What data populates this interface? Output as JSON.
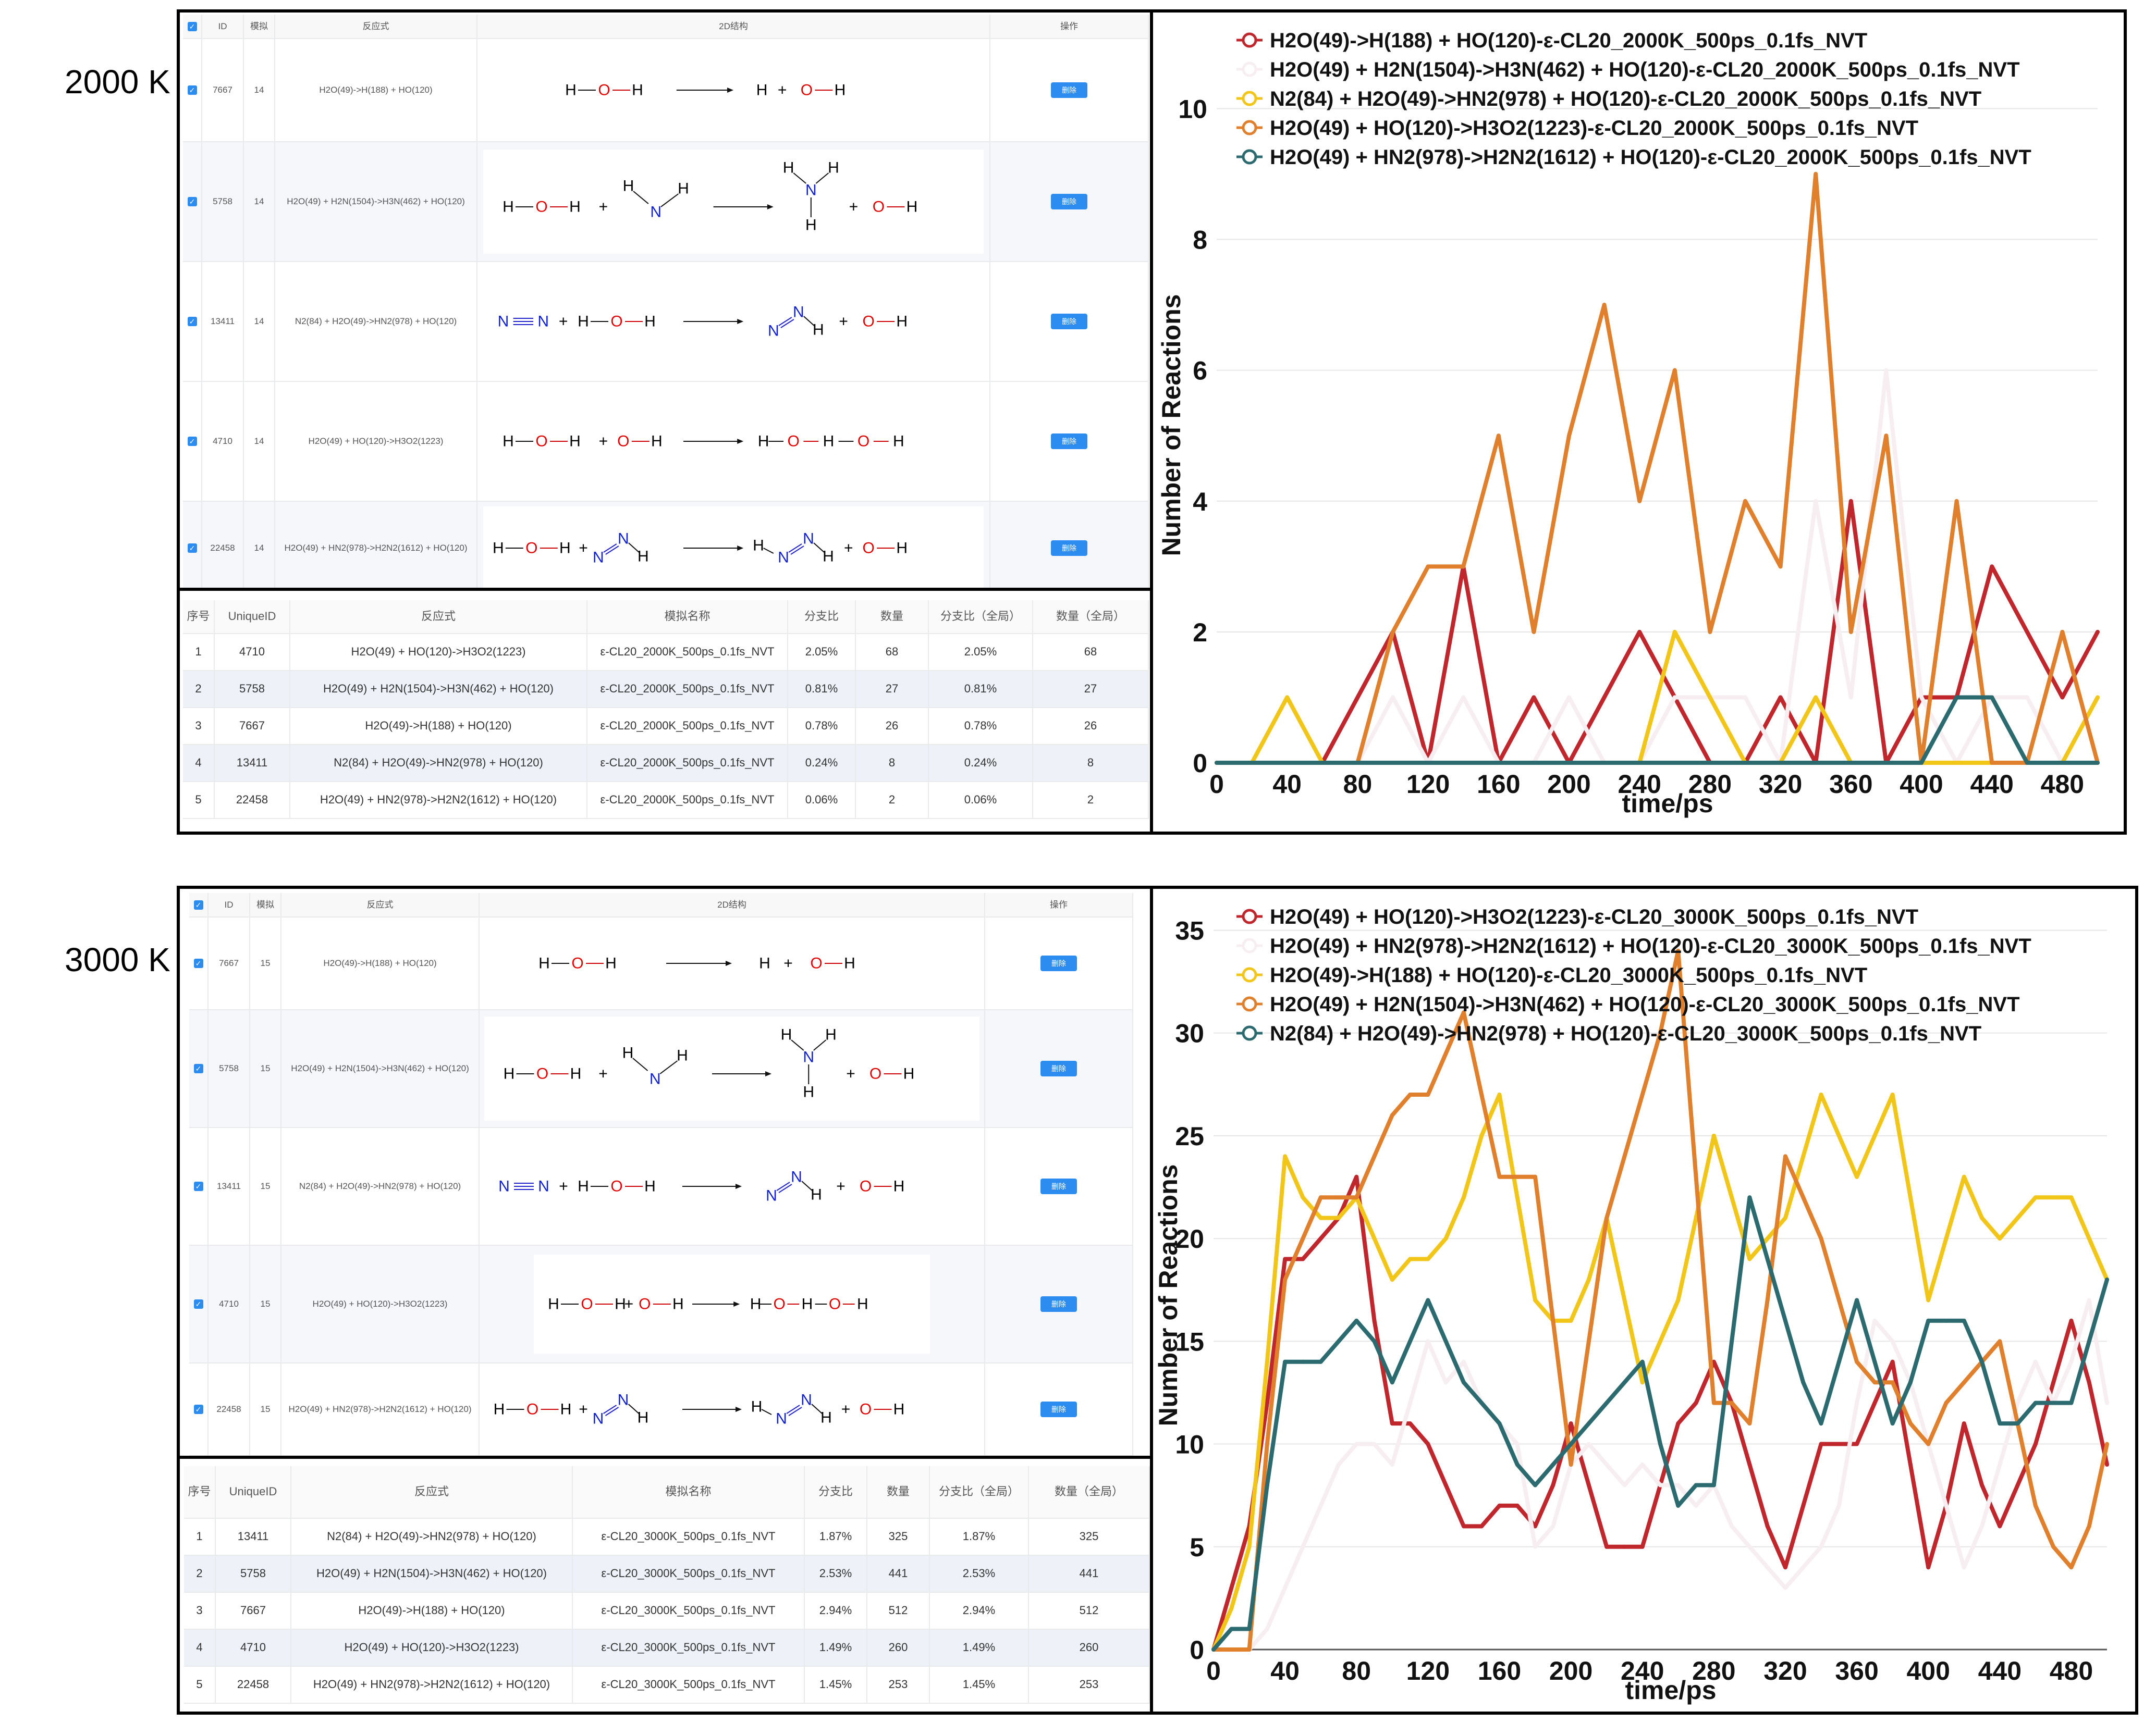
{
  "panels": [
    {
      "temp_label": "2000 K",
      "reaction_table": {
        "headers": [
          "ID",
          "模拟",
          "反应式",
          "2D结构",
          "操作"
        ],
        "delete_label": "删除",
        "rows": [
          {
            "id": "7667",
            "sim": "14",
            "eq": "H2O(49)->H(188) + HO(120)",
            "mol": "m7667"
          },
          {
            "id": "5758",
            "sim": "14",
            "eq": "H2O(49) + H2N(1504)->H3N(462) + HO(120)",
            "mol": "m5758"
          },
          {
            "id": "13411",
            "sim": "14",
            "eq": "N2(84) + H2O(49)->HN2(978) + HO(120)",
            "mol": "m13411"
          },
          {
            "id": "4710",
            "sim": "14",
            "eq": "H2O(49) + HO(120)->H3O2(1223)",
            "mol": "m4710"
          },
          {
            "id": "22458",
            "sim": "14",
            "eq": "H2O(49) + HN2(978)->H2N2(1612) + HO(120)",
            "mol": "m22458"
          }
        ]
      },
      "stats_table": {
        "headers": [
          "序号",
          "UniqueID",
          "反应式",
          "模拟名称",
          "分支比",
          "数量",
          "分支比（全局）",
          "数量（全局）"
        ],
        "rows": [
          [
            "1",
            "4710",
            "H2O(49) + HO(120)->H3O2(1223)",
            "ε-CL20_2000K_500ps_0.1fs_NVT",
            "2.05%",
            "68",
            "2.05%",
            "68"
          ],
          [
            "2",
            "5758",
            "H2O(49) + H2N(1504)->H3N(462) + HO(120)",
            "ε-CL20_2000K_500ps_0.1fs_NVT",
            "0.81%",
            "27",
            "0.81%",
            "27"
          ],
          [
            "3",
            "7667",
            "H2O(49)->H(188) + HO(120)",
            "ε-CL20_2000K_500ps_0.1fs_NVT",
            "0.78%",
            "26",
            "0.78%",
            "26"
          ],
          [
            "4",
            "13411",
            "N2(84) + H2O(49)->HN2(978) + HO(120)",
            "ε-CL20_2000K_500ps_0.1fs_NVT",
            "0.24%",
            "8",
            "0.24%",
            "8"
          ],
          [
            "5",
            "22458",
            "H2O(49) + HN2(978)->H2N2(1612) + HO(120)",
            "ε-CL20_2000K_500ps_0.1fs_NVT",
            "0.06%",
            "2",
            "0.06%",
            "2"
          ]
        ]
      }
    },
    {
      "temp_label": "3000 K",
      "reaction_table": {
        "headers": [
          "ID",
          "模拟",
          "反应式",
          "2D结构",
          "操作"
        ],
        "delete_label": "删除",
        "rows": [
          {
            "id": "7667",
            "sim": "15",
            "eq": "H2O(49)->H(188) + HO(120)",
            "mol": "m7667"
          },
          {
            "id": "5758",
            "sim": "15",
            "eq": "H2O(49) + H2N(1504)->H3N(462) + HO(120)",
            "mol": "m5758"
          },
          {
            "id": "13411",
            "sim": "15",
            "eq": "N2(84) + H2O(49)->HN2(978) + HO(120)",
            "mol": "m13411"
          },
          {
            "id": "4710",
            "sim": "15",
            "eq": "H2O(49) + HO(120)->H3O2(1223)",
            "mol": "m4710"
          },
          {
            "id": "22458",
            "sim": "15",
            "eq": "H2O(49) + HN2(978)->H2N2(1612) + HO(120)",
            "mol": "m22458"
          }
        ]
      },
      "stats_table": {
        "headers": [
          "序号",
          "UniqueID",
          "反应式",
          "模拟名称",
          "分支比",
          "数量",
          "分支比（全局）",
          "数量（全局）"
        ],
        "rows": [
          [
            "1",
            "13411",
            "N2(84) + H2O(49)->HN2(978) + HO(120)",
            "ε-CL20_3000K_500ps_0.1fs_NVT",
            "1.87%",
            "325",
            "1.87%",
            "325"
          ],
          [
            "2",
            "5758",
            "H2O(49) + H2N(1504)->H3N(462) + HO(120)",
            "ε-CL20_3000K_500ps_0.1fs_NVT",
            "2.53%",
            "441",
            "2.53%",
            "441"
          ],
          [
            "3",
            "7667",
            "H2O(49)->H(188) + HO(120)",
            "ε-CL20_3000K_500ps_0.1fs_NVT",
            "2.94%",
            "512",
            "2.94%",
            "512"
          ],
          [
            "4",
            "4710",
            "H2O(49) + HO(120)->H3O2(1223)",
            "ε-CL20_3000K_500ps_0.1fs_NVT",
            "1.49%",
            "260",
            "1.49%",
            "260"
          ],
          [
            "5",
            "22458",
            "H2O(49) + HN2(978)->H2N2(1612) + HO(120)",
            "ε-CL20_3000K_500ps_0.1fs_NVT",
            "1.45%",
            "253",
            "1.45%",
            "253"
          ]
        ]
      }
    }
  ],
  "chart_data": [
    {
      "type": "line",
      "xlabel": "time/ps",
      "ylabel": "Number of Reactions",
      "x": [
        0,
        20,
        40,
        60,
        80,
        100,
        120,
        140,
        160,
        180,
        200,
        220,
        240,
        260,
        280,
        300,
        320,
        340,
        360,
        380,
        400,
        420,
        440,
        460,
        480,
        500
      ],
      "xticks": [
        0,
        40,
        80,
        120,
        160,
        200,
        240,
        280,
        320,
        360,
        400,
        440,
        480
      ],
      "yticks": [
        0,
        2,
        4,
        6,
        8,
        10
      ],
      "ylim": [
        0,
        10.8
      ],
      "series": [
        {
          "name": "H2O(49)->H(188) + HO(120)-ε-CL20_2000K_500ps_0.1fs_NVT",
          "color": "#c0272d",
          "values": [
            0,
            0,
            0,
            0,
            1,
            2,
            0,
            3,
            0,
            1,
            0,
            1,
            2,
            1,
            0,
            0,
            1,
            0,
            4,
            0,
            1,
            1,
            3,
            2,
            1,
            2
          ]
        },
        {
          "name": "H2O(49) + H2N(1504)->H3N(462) + HO(120)-ε-CL20_2000K_500ps_0.1fs_NVT",
          "color": "#f7eef2",
          "values": [
            0,
            0,
            0,
            0,
            0,
            1,
            0,
            1,
            0,
            0,
            1,
            0,
            0,
            1,
            1,
            1,
            0,
            4,
            1,
            6,
            1,
            0,
            1,
            1,
            0,
            1
          ]
        },
        {
          "name": "N2(84) + H2O(49)->HN2(978) + HO(120)-ε-CL20_2000K_500ps_0.1fs_NVT",
          "color": "#f2c619",
          "values": [
            0,
            0,
            1,
            0,
            0,
            0,
            0,
            0,
            0,
            0,
            0,
            0,
            0,
            2,
            1,
            0,
            0,
            1,
            0,
            0,
            0,
            0,
            0,
            0,
            0,
            1
          ]
        },
        {
          "name": "H2O(49) + HO(120)->H3O2(1223)-ε-CL20_2000K_500ps_0.1fs_NVT",
          "color": "#e07f2c",
          "values": [
            0,
            0,
            0,
            0,
            0,
            2,
            3,
            3,
            5,
            2,
            5,
            7,
            4,
            6,
            2,
            4,
            3,
            9,
            2,
            5,
            0,
            4,
            0,
            0,
            2,
            0
          ]
        },
        {
          "name": "H2O(49) + HN2(978)->H2N2(1612) + HO(120)-ε-CL20_2000K_500ps_0.1fs_NVT",
          "color": "#2b6b70",
          "values": [
            0,
            0,
            0,
            0,
            0,
            0,
            0,
            0,
            0,
            0,
            0,
            0,
            0,
            0,
            0,
            0,
            0,
            0,
            0,
            0,
            0,
            1,
            1,
            0,
            0,
            0
          ]
        }
      ]
    },
    {
      "type": "line",
      "xlabel": "time/ps",
      "ylabel": "Number of Reactions",
      "x": [
        0,
        10,
        20,
        30,
        40,
        50,
        60,
        70,
        80,
        90,
        100,
        110,
        120,
        130,
        140,
        150,
        160,
        170,
        180,
        190,
        200,
        210,
        220,
        230,
        240,
        250,
        260,
        270,
        280,
        290,
        300,
        310,
        320,
        330,
        340,
        350,
        360,
        370,
        380,
        390,
        400,
        410,
        420,
        430,
        440,
        450,
        460,
        470,
        480,
        490,
        500
      ],
      "xticks": [
        0,
        40,
        80,
        120,
        160,
        200,
        240,
        280,
        320,
        360,
        400,
        440,
        480
      ],
      "yticks": [
        0,
        5,
        10,
        15,
        20,
        25,
        30,
        35
      ],
      "ylim": [
        0,
        36
      ],
      "series": [
        {
          "name": "H2O(49) + HO(120)->H3O2(1223)-ε-CL20_3000K_500ps_0.1fs_NVT",
          "color": "#c0272d",
          "values": [
            0,
            3,
            6,
            12,
            19,
            19,
            20,
            21,
            23,
            16,
            11,
            11,
            10,
            8,
            6,
            6,
            7,
            7,
            6,
            8,
            11,
            8,
            5,
            5,
            5,
            8,
            11,
            12,
            14,
            12,
            9,
            6,
            4,
            7,
            10,
            10,
            10,
            12,
            14,
            9,
            4,
            7,
            11,
            8,
            6,
            8,
            10,
            13,
            16,
            13,
            9
          ]
        },
        {
          "name": "H2O(49) + HN2(978)->H2N2(1612) + HO(120)-ε-CL20_3000K_500ps_0.1fs_NVT",
          "color": "#f7eef2",
          "values": [
            0,
            0,
            0,
            1,
            3,
            5,
            7,
            9,
            10,
            10,
            9,
            12,
            15,
            13,
            14,
            12,
            11,
            10,
            5,
            6,
            9,
            10,
            9,
            8,
            9,
            8,
            8,
            7,
            8,
            6,
            5,
            4,
            3,
            4,
            5,
            7,
            12,
            16,
            15,
            13,
            10,
            7,
            4,
            6,
            9,
            12,
            14,
            12,
            14,
            17,
            12
          ]
        },
        {
          "name": "H2O(49)->H(188) + HO(120)-ε-CL20_3000K_500ps_0.1fs_NVT",
          "color": "#f2c619",
          "values": [
            0,
            2,
            5,
            14,
            24,
            22,
            21,
            21,
            22,
            20,
            18,
            19,
            19,
            20,
            22,
            25,
            27,
            22,
            17,
            16,
            16,
            18,
            21,
            17,
            13,
            15,
            17,
            21,
            25,
            22,
            19,
            20,
            21,
            24,
            27,
            25,
            23,
            25,
            27,
            22,
            17,
            20,
            23,
            21,
            20,
            21,
            22,
            22,
            22,
            20,
            18
          ]
        },
        {
          "name": "H2O(49) + H2N(1504)->H3N(462) + HO(120)-ε-CL20_3000K_500ps_0.1fs_NVT",
          "color": "#e07f2c",
          "values": [
            0,
            0,
            0,
            10,
            18,
            20,
            22,
            22,
            22,
            24,
            26,
            27,
            27,
            29,
            31,
            27,
            23,
            23,
            23,
            16,
            9,
            15,
            21,
            24,
            27,
            30,
            34,
            23,
            12,
            12,
            11,
            17,
            24,
            22,
            20,
            17,
            14,
            13,
            13,
            11,
            10,
            12,
            13,
            14,
            15,
            11,
            7,
            5,
            4,
            6,
            10
          ]
        },
        {
          "name": "N2(84) + H2O(49)->HN2(978) + HO(120)-ε-CL20_3000K_500ps_0.1fs_NVT",
          "color": "#2b6b70",
          "values": [
            0,
            1,
            1,
            8,
            14,
            14,
            14,
            15,
            16,
            15,
            13,
            15,
            17,
            15,
            13,
            12,
            11,
            9,
            8,
            9,
            10,
            11,
            12,
            13,
            14,
            10,
            7,
            8,
            8,
            15,
            22,
            19,
            16,
            13,
            11,
            14,
            17,
            14,
            11,
            13,
            16,
            16,
            16,
            14,
            11,
            11,
            12,
            12,
            12,
            15,
            18
          ]
        }
      ]
    }
  ]
}
